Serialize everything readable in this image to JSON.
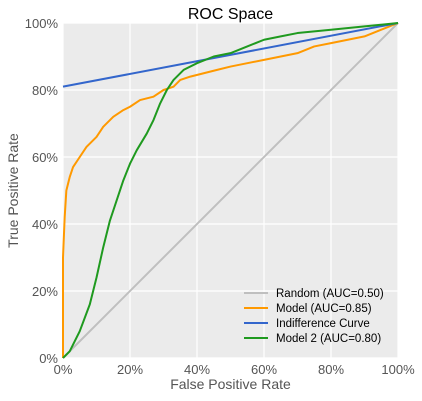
{
  "chart_data": {
    "type": "line",
    "title": "ROC Space",
    "xlabel": "False Positive Rate",
    "ylabel": "True Positive Rate",
    "xlim": [
      0,
      1
    ],
    "ylim": [
      0,
      1
    ],
    "x_ticks": [
      "0%",
      "20%",
      "40%",
      "60%",
      "80%",
      "100%"
    ],
    "y_ticks": [
      "0%",
      "20%",
      "40%",
      "60%",
      "80%",
      "100%"
    ],
    "grid": true,
    "legend_position": "bottom-right",
    "background_color": "#ebebeb",
    "series": [
      {
        "name": "Random (AUC=0.50)",
        "color": "#bfbfbf",
        "points": [
          [
            0,
            0
          ],
          [
            1,
            1
          ]
        ]
      },
      {
        "name": "Model (AUC=0.85)",
        "color": "#ff9900",
        "points": [
          [
            0,
            0
          ],
          [
            0.0,
            0.3
          ],
          [
            0.005,
            0.42
          ],
          [
            0.01,
            0.5
          ],
          [
            0.02,
            0.54
          ],
          [
            0.03,
            0.57
          ],
          [
            0.05,
            0.6
          ],
          [
            0.07,
            0.63
          ],
          [
            0.1,
            0.66
          ],
          [
            0.12,
            0.69
          ],
          [
            0.15,
            0.72
          ],
          [
            0.18,
            0.74
          ],
          [
            0.2,
            0.75
          ],
          [
            0.23,
            0.77
          ],
          [
            0.27,
            0.78
          ],
          [
            0.3,
            0.8
          ],
          [
            0.33,
            0.81
          ],
          [
            0.35,
            0.83
          ],
          [
            0.38,
            0.84
          ],
          [
            0.42,
            0.85
          ],
          [
            0.46,
            0.86
          ],
          [
            0.5,
            0.87
          ],
          [
            0.55,
            0.88
          ],
          [
            0.6,
            0.89
          ],
          [
            0.65,
            0.9
          ],
          [
            0.7,
            0.91
          ],
          [
            0.75,
            0.93
          ],
          [
            0.8,
            0.94
          ],
          [
            0.85,
            0.95
          ],
          [
            0.9,
            0.96
          ],
          [
            0.95,
            0.98
          ],
          [
            1.0,
            1.0
          ]
        ]
      },
      {
        "name": "Indifference Curve",
        "color": "#3366cc",
        "points": [
          [
            0,
            0.81
          ],
          [
            1,
            1
          ]
        ]
      },
      {
        "name": "Model 2 (AUC=0.80)",
        "color": "#1f9a1f",
        "points": [
          [
            0,
            0
          ],
          [
            0.02,
            0.02
          ],
          [
            0.05,
            0.08
          ],
          [
            0.08,
            0.16
          ],
          [
            0.1,
            0.24
          ],
          [
            0.12,
            0.33
          ],
          [
            0.14,
            0.41
          ],
          [
            0.16,
            0.47
          ],
          [
            0.18,
            0.53
          ],
          [
            0.2,
            0.58
          ],
          [
            0.22,
            0.62
          ],
          [
            0.25,
            0.67
          ],
          [
            0.27,
            0.71
          ],
          [
            0.29,
            0.76
          ],
          [
            0.31,
            0.8
          ],
          [
            0.33,
            0.83
          ],
          [
            0.36,
            0.86
          ],
          [
            0.4,
            0.88
          ],
          [
            0.45,
            0.9
          ],
          [
            0.5,
            0.91
          ],
          [
            0.55,
            0.93
          ],
          [
            0.6,
            0.95
          ],
          [
            0.65,
            0.96
          ],
          [
            0.7,
            0.97
          ],
          [
            0.8,
            0.98
          ],
          [
            0.9,
            0.99
          ],
          [
            1.0,
            1.0
          ]
        ]
      }
    ]
  }
}
